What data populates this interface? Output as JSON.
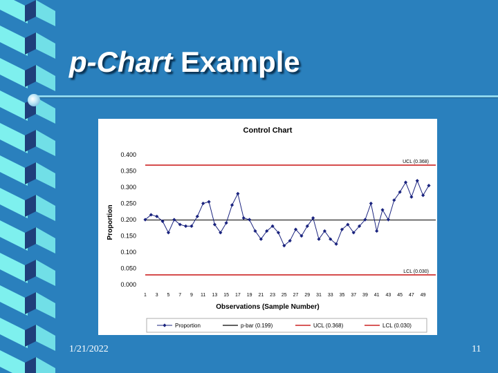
{
  "slide": {
    "title_italic": "p-Chart",
    "title_rest": " Example",
    "date": "1/21/2022",
    "page_number": "11",
    "colors": {
      "background": "#2a80bd",
      "ribbon_light": "#7ef0ee",
      "ribbon_dark": "#1f3f7a",
      "rule": "#8dd6ee"
    }
  },
  "chart_data": {
    "type": "line",
    "title": "Control Chart",
    "xlabel": "Observations (Sample Number)",
    "ylabel": "Proportion",
    "ylim": [
      0,
      0.4
    ],
    "yticks": [
      "0.000",
      "0.050",
      "0.100",
      "0.150",
      "0.200",
      "0.250",
      "0.300",
      "0.350",
      "0.400"
    ],
    "xtick_labels": [
      "1",
      "3",
      "5",
      "7",
      "9",
      "11",
      "13",
      "15",
      "17",
      "19",
      "21",
      "23",
      "25",
      "27",
      "29",
      "31",
      "33",
      "35",
      "37",
      "39",
      "41",
      "43",
      "45",
      "47",
      "49"
    ],
    "x": [
      1,
      2,
      3,
      4,
      5,
      6,
      7,
      8,
      9,
      10,
      11,
      12,
      13,
      14,
      15,
      16,
      17,
      18,
      19,
      20,
      21,
      22,
      23,
      24,
      25,
      26,
      27,
      28,
      29,
      30,
      31,
      32,
      33,
      34,
      35,
      36,
      37,
      38,
      39,
      40,
      41,
      42,
      43,
      44,
      45,
      46,
      47,
      48,
      49,
      50
    ],
    "series": [
      {
        "name": "Proportion",
        "color": "#1a237e",
        "values": [
          0.2,
          0.215,
          0.21,
          0.195,
          0.16,
          0.2,
          0.185,
          0.18,
          0.18,
          0.21,
          0.25,
          0.255,
          0.185,
          0.16,
          0.19,
          0.245,
          0.28,
          0.205,
          0.2,
          0.165,
          0.14,
          0.165,
          0.18,
          0.16,
          0.12,
          0.135,
          0.17,
          0.15,
          0.18,
          0.205,
          0.14,
          0.165,
          0.14,
          0.125,
          0.17,
          0.185,
          0.16,
          0.18,
          0.2,
          0.25,
          0.165,
          0.23,
          0.2,
          0.26,
          0.285,
          0.315,
          0.27,
          0.32,
          0.275,
          0.305
        ]
      }
    ],
    "reference_lines": [
      {
        "name": "p-bar (0.199)",
        "value": 0.199,
        "color": "#000000",
        "label": ""
      },
      {
        "name": "UCL (0.368)",
        "value": 0.368,
        "color": "#cc2222",
        "label": "UCL (0.368)"
      },
      {
        "name": "LCL (0.030)",
        "value": 0.03,
        "color": "#cc2222",
        "label": "LCL (0.030)"
      }
    ],
    "legend": {
      "placement": "bottom",
      "entries": [
        "Proportion",
        "p-bar (0.199)",
        "UCL (0.368)",
        "LCL (0.030)"
      ]
    },
    "grid": false
  }
}
